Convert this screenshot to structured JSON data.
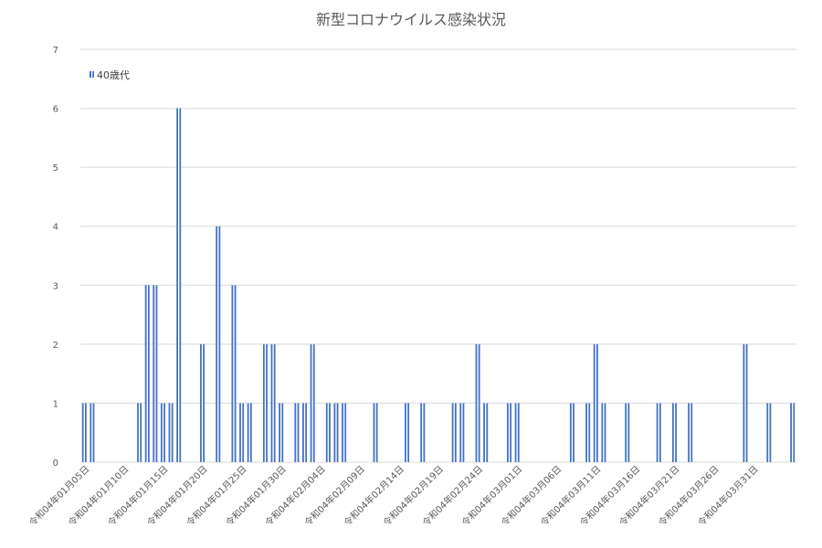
{
  "chart_data": {
    "type": "bar",
    "title": "新型コロナウイルス感染状況",
    "legend": {
      "placement": "top-left",
      "entries": [
        "40歳代"
      ]
    },
    "grid": true,
    "ylim": [
      0,
      7
    ],
    "yticks": [
      0,
      1,
      2,
      3,
      4,
      5,
      6,
      7
    ],
    "x_tick_labels": [
      "令和04年01月05日",
      "令和04年01月10日",
      "令和04年01月15日",
      "令和04年01月20日",
      "令和04年01月25日",
      "令和04年01月30日",
      "令和04年02月04日",
      "令和04年02月09日",
      "令和04年02月14日",
      "令和04年02月19日",
      "令和04年02月24日",
      "令和04年03月01日",
      "令和04年03月06日",
      "令和04年03月11日",
      "令和04年03月16日",
      "令和04年03月21日",
      "令和04年03月26日",
      "令和04年03月31日"
    ],
    "series": [
      {
        "name": "40歳代",
        "color": "#4472c4",
        "values": [
          1,
          1,
          0,
          0,
          0,
          0,
          0,
          1,
          3,
          3,
          1,
          1,
          6,
          0,
          0,
          2,
          0,
          4,
          0,
          3,
          1,
          1,
          0,
          2,
          2,
          1,
          0,
          1,
          1,
          2,
          0,
          1,
          1,
          1,
          0,
          0,
          0,
          1,
          0,
          0,
          0,
          1,
          0,
          1,
          0,
          0,
          0,
          1,
          1,
          0,
          2,
          1,
          0,
          0,
          1,
          1,
          0,
          0,
          0,
          0,
          0,
          0,
          1,
          0,
          1,
          2,
          1,
          0,
          0,
          1,
          0,
          0,
          0,
          1,
          0,
          1,
          0,
          1,
          0,
          0,
          0,
          0,
          0,
          0,
          2,
          0,
          0,
          1,
          0,
          0,
          1
        ]
      }
    ]
  }
}
